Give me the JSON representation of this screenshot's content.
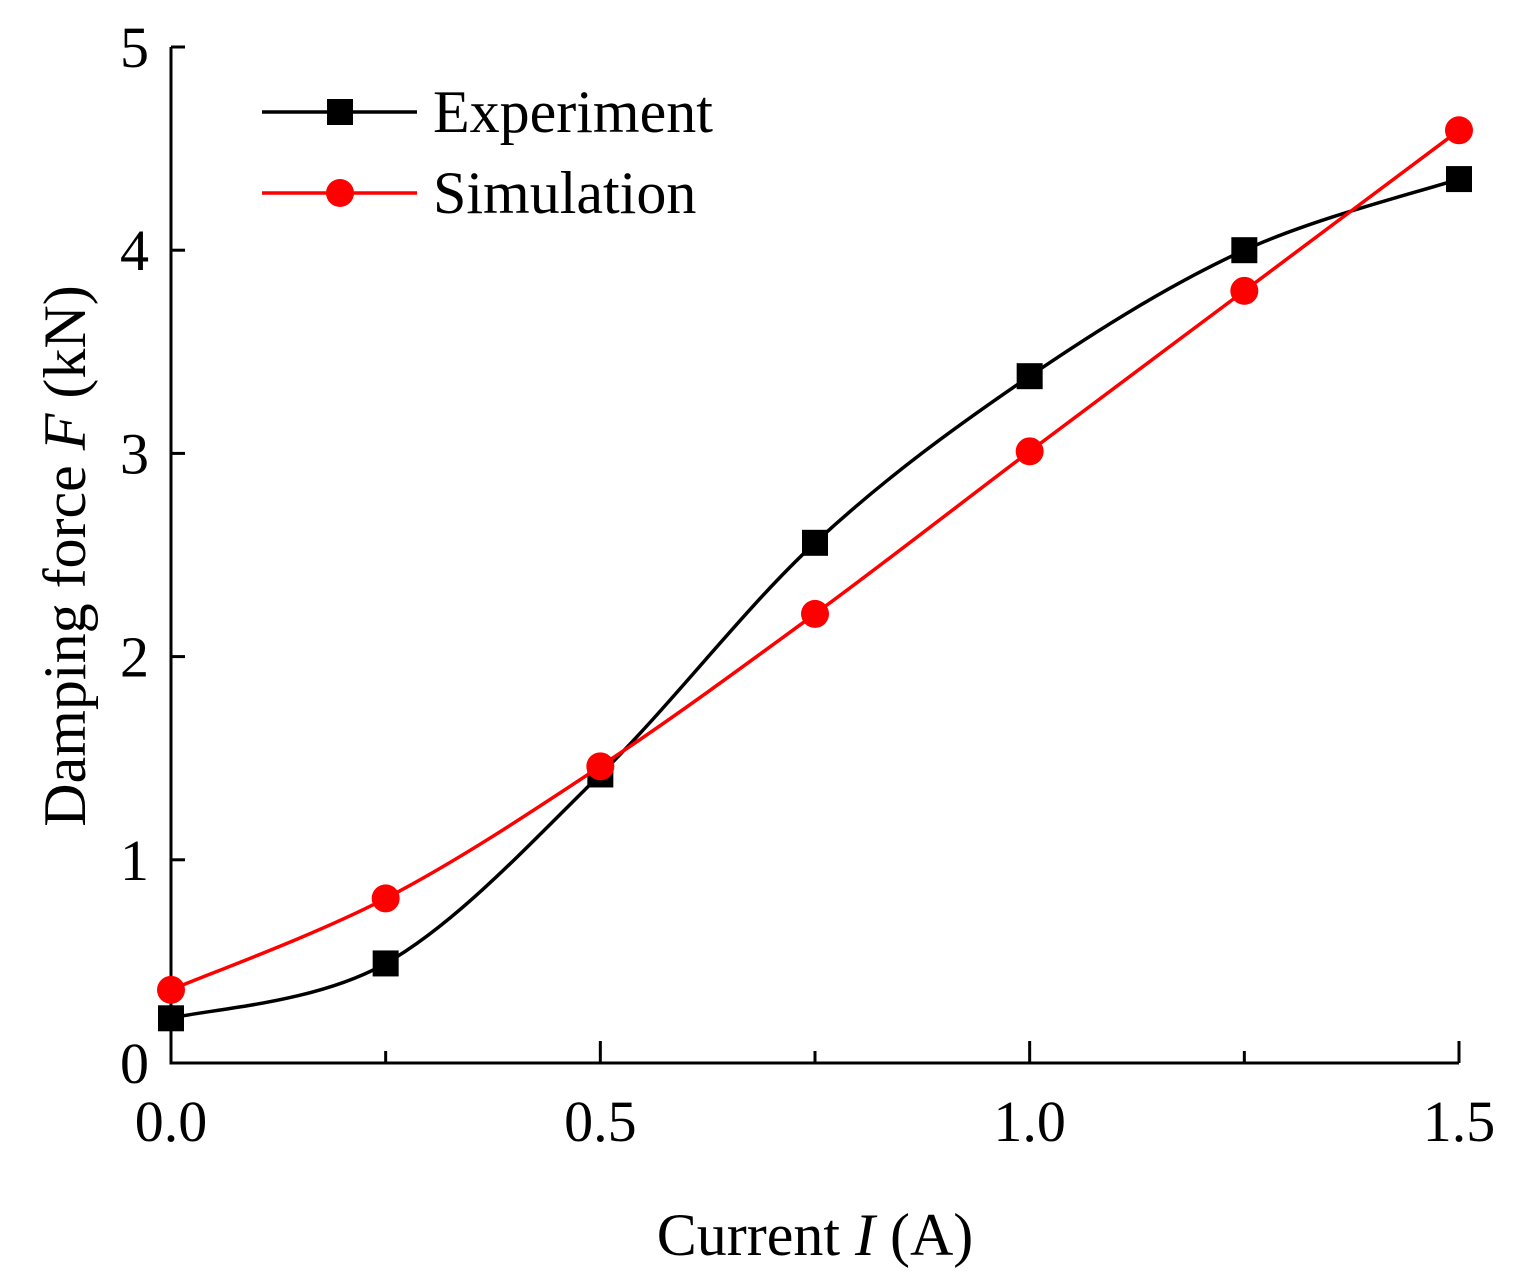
{
  "chart_data": {
    "type": "line",
    "title": "",
    "xlabel": {
      "prefix": "Current ",
      "symbol": "I",
      "suffix": " (A)"
    },
    "ylabel": {
      "prefix": "Damping force ",
      "symbol": "F",
      "suffix": " (kN)"
    },
    "xlim": [
      0,
      1.5
    ],
    "ylim": [
      0,
      5
    ],
    "x_major_ticks": [
      0,
      0.5,
      1.0,
      1.5
    ],
    "x_major_tick_labels": [
      "0.0",
      "0.5",
      "1.0",
      "1.5"
    ],
    "x_minor_ticks": [
      0.25,
      0.75,
      1.25
    ],
    "y_ticks": [
      0,
      1,
      2,
      3,
      4,
      5
    ],
    "y_tick_labels": [
      "0",
      "1",
      "2",
      "3",
      "4",
      "5"
    ],
    "grid": false,
    "legend_position": "top-left",
    "x": [
      0,
      0.25,
      0.5,
      0.75,
      1.0,
      1.25,
      1.5
    ],
    "series": [
      {
        "name": "Experiment",
        "marker": "square",
        "color": "#000000",
        "smooth": true,
        "values": [
          0.22,
          0.49,
          1.42,
          2.56,
          3.38,
          4.0,
          4.35
        ]
      },
      {
        "name": "Simulation",
        "marker": "circle",
        "color": "#ff0000",
        "smooth": true,
        "values": [
          0.36,
          0.81,
          1.46,
          2.21,
          3.01,
          3.8,
          4.59
        ]
      }
    ]
  }
}
